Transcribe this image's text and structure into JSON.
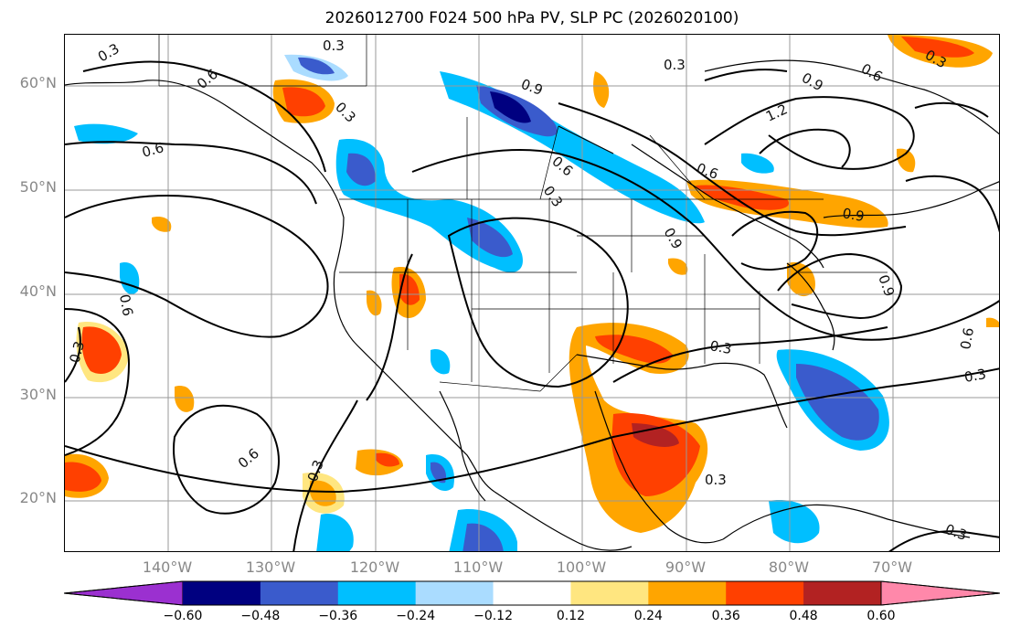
{
  "title": "2026012700 F024 500 hPa PV, SLP PC (2026020100)",
  "lat_labels": [
    "60°N",
    "50°N",
    "40°N",
    "30°N",
    "20°N"
  ],
  "lon_labels": [
    "140°W",
    "130°W",
    "120°W",
    "110°W",
    "100°W",
    "90°W",
    "80°W",
    "70°W"
  ],
  "colorbar": {
    "ticks": [
      "−0.60",
      "−0.48",
      "−0.36",
      "−0.24",
      "−0.12",
      "0.12",
      "0.24",
      "0.36",
      "0.48",
      "0.60"
    ],
    "colors": [
      "#9b30d0",
      "#000080",
      "#3a5bcc",
      "#00bfff",
      "#aadcff",
      "#ffffff",
      "#ffe680",
      "#ffa500",
      "#ff4000",
      "#b22222",
      "#ff88aa"
    ]
  },
  "contour_labels": [
    "0.3",
    "0.6",
    "0.9",
    "1.2"
  ]
}
